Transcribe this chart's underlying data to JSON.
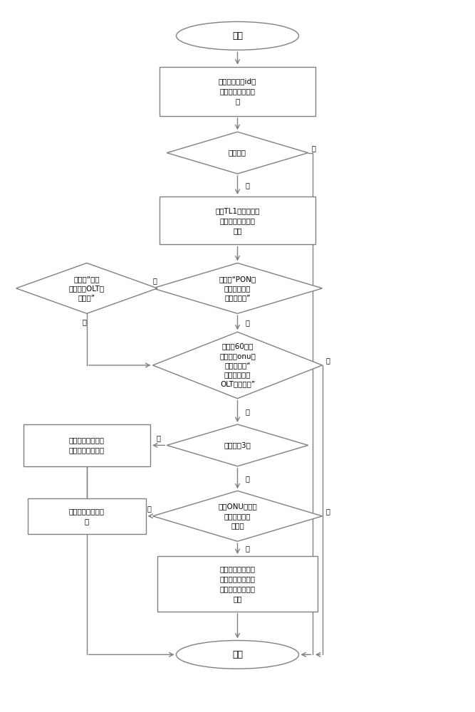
{
  "bg_color": "#ffffff",
  "line_color": "#808080",
  "text_color": "#000000",
  "box_edge_color": "#808080",
  "fig_width": 6.67,
  "fig_height": 10.0,
  "start_text": "开始",
  "end_text": "结束",
  "box1_text": "根据报障逻辑id查\n询节电机编码和端\n口",
  "dia1_text": "是否查到",
  "box2_text": "调用TL1指令，查询\n网管是否有流氓猋\n告警",
  "dia2_text": "是否有“PON口\n下存在非法入\n侵的流氓猋”",
  "dia3_text": "是否有“分支\n光纤断或OLT检\n测不到”",
  "dia4_text": "在前后60分钟\n内，其他onu节\n点下是否有“\n分支光纤断或\nOLT检测不到”",
  "dia5_text": "是否大于3个",
  "box3_text": "返回告警用户的宽\n带号码和装机地址",
  "dia6_text": "判断ONU是否属\n于同一二级分\n光器下",
  "box4_text": "返回二级分光器编\n码",
  "box5_text": "返回二级分光器编\n码和没有告警信息\n的用户号码和装机\n地址",
  "label_shi": "是",
  "label_fou": "否"
}
